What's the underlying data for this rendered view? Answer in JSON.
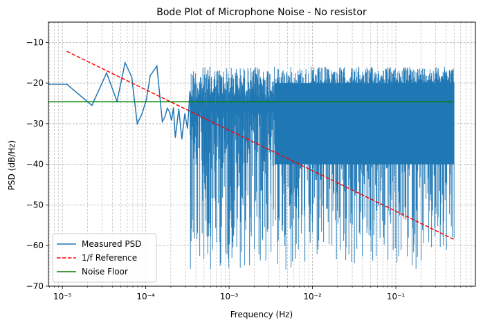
{
  "chart_data": {
    "type": "line",
    "title": "Bode Plot of Microphone Noise - No resistor",
    "xlabel": "Frequency (Hz)",
    "ylabel": "PSD (dB/Hz)",
    "xscale": "log",
    "xlim": [
      6.8e-06,
      0.9
    ],
    "ylim": [
      -70,
      -5
    ],
    "grid": true,
    "legend_position": "lower-left",
    "x_ticks": [
      {
        "value": 1e-05,
        "label": "10⁻⁵"
      },
      {
        "value": 0.0001,
        "label": "10⁻⁴"
      },
      {
        "value": 0.001,
        "label": "10⁻³"
      },
      {
        "value": 0.01,
        "label": "10⁻²"
      },
      {
        "value": 0.1,
        "label": "10⁻¹"
      }
    ],
    "y_ticks": [
      {
        "value": -10,
        "label": "−10"
      },
      {
        "value": -20,
        "label": "−20"
      },
      {
        "value": -30,
        "label": "−30"
      },
      {
        "value": -40,
        "label": "−40"
      },
      {
        "value": -50,
        "label": "−50"
      },
      {
        "value": -60,
        "label": "−60"
      },
      {
        "value": -70,
        "label": "−70"
      }
    ],
    "series": [
      {
        "name": "Measured PSD",
        "color": "#1f77b4",
        "style": "solid",
        "x": [
          6.8e-06,
          1.13e-05,
          2.26e-05,
          3.39e-05,
          4.52e-05,
          5.65e-05,
          6.78e-05,
          7.91e-05,
          9.04e-05,
          0.000102,
          0.000113,
          0.000136,
          0.000158,
          0.00017,
          0.000181,
          0.000192,
          0.000204,
          0.000215,
          0.000226,
          0.000249,
          0.000271,
          0.000294,
          0.000317,
          0.000339
        ],
        "y": [
          -20.3,
          -20.3,
          -25.5,
          -17.5,
          -24.5,
          -15,
          -18.5,
          -30,
          -27.5,
          -24,
          -18.2,
          -15.8,
          -29.5,
          -28.3,
          -26.2,
          -27,
          -29.2,
          -26,
          -33.5,
          -26.3,
          -33.8,
          -27.5,
          -31.2,
          -22
        ]
      },
      {
        "name": "1/f Reference",
        "color": "#ff0000",
        "style": "dashed",
        "x": [
          1.13e-05,
          0.5
        ],
        "y": [
          -12.2,
          -58.5
        ]
      },
      {
        "name": "Noise Floor",
        "color": "#008000",
        "style": "solid",
        "x": [
          6.8e-06,
          0.5
        ],
        "y": [
          -24.6,
          -24.6
        ]
      }
    ],
    "noise_band": {
      "series": "Measured PSD",
      "x_range": [
        0.00034,
        0.5
      ],
      "upper": -16,
      "lower_top": -27,
      "lower_bottom": -66
    }
  }
}
